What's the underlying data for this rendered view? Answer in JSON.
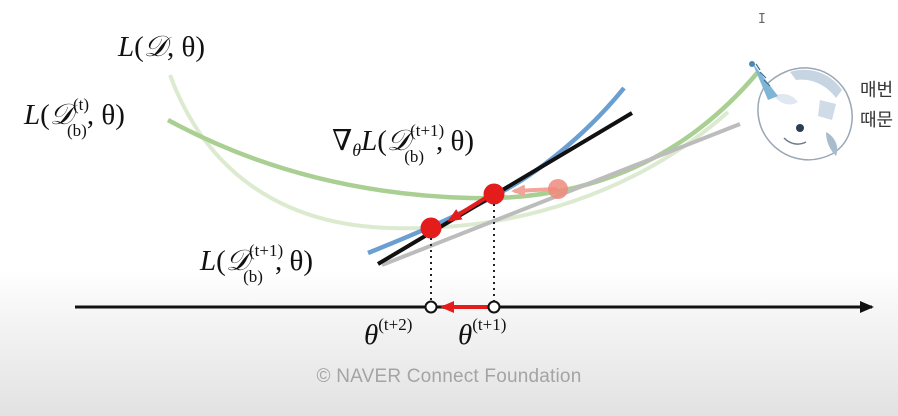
{
  "labels": {
    "full_loss": {
      "fn": "L",
      "open": "(",
      "set": "𝒟",
      "sep": ", θ)"
    },
    "batch_t_loss": {
      "fn": "L",
      "open": "(",
      "set": "𝒟",
      "sup": "(t)",
      "sub": "(b)",
      "sep": ", θ)"
    },
    "gradient": {
      "nabla": "∇",
      "nabla_sub": "θ",
      "fn": "L",
      "open": "(",
      "set": "𝒟",
      "sup": "(t+1)",
      "sub": "(b)",
      "sep": ", θ)"
    },
    "batch_t1_loss": {
      "fn": "L",
      "open": "(",
      "set": "𝒟",
      "sup": "(t+1)",
      "sub": "(b)",
      "sep": ", θ)"
    },
    "theta_t2": {
      "base": "θ",
      "sup": "(t+2)"
    },
    "theta_t1": {
      "base": "θ",
      "sup": "(t+1)"
    }
  },
  "overlay": {
    "korean_line1": "매번",
    "korean_line2": "때문",
    "cursor": "I"
  },
  "footer": {
    "text": "©  NAVER Connect Foundation"
  },
  "colors": {
    "green_curve": "#a9cf92",
    "blue_curve": "#6b9fd2",
    "tangent": "#111111",
    "gray_line": "#b8b8b8",
    "point": "#e41c1c",
    "axis": "#111111"
  }
}
